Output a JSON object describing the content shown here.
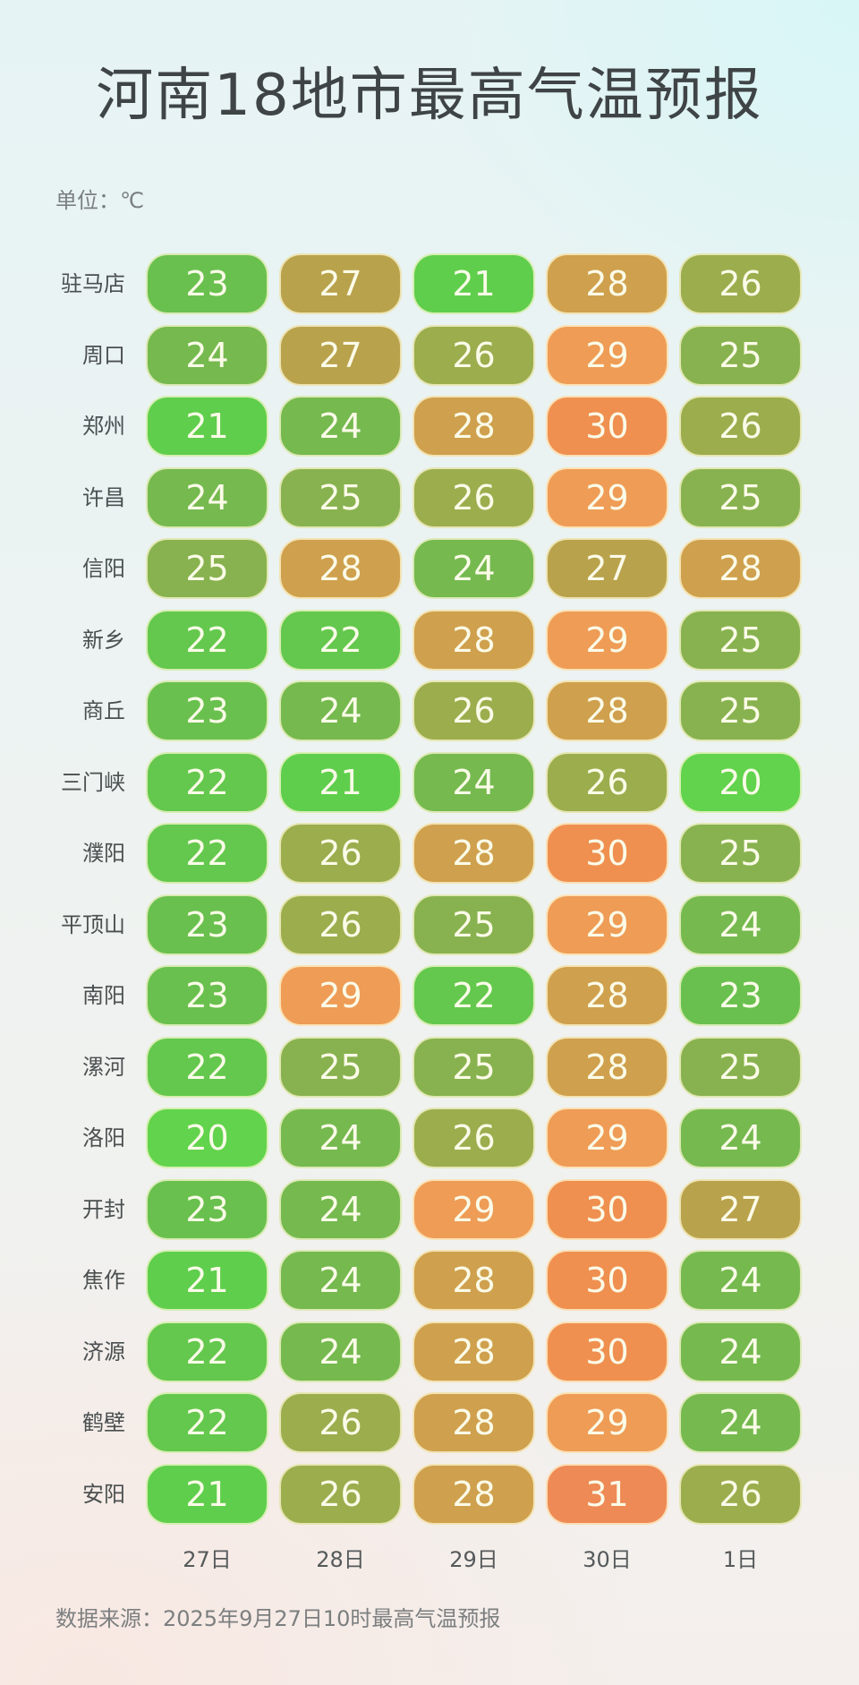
{
  "header": {
    "title": "河南18地市最高气温预报",
    "unit": "单位：℃"
  },
  "footer": {
    "source": "数据来源：2025年9月27日10时最高气温预报"
  },
  "colors": {
    "t20": "#62d34c",
    "t21": "#5fce4c",
    "t22": "#63c84d",
    "t23": "#69c04e",
    "t24": "#75b94f",
    "t25": "#88b24f",
    "t26": "#9bad4d",
    "t27": "#b9a24c",
    "t28": "#cfa04d",
    "t29": "#ee9c56",
    "t30": "#ef9050",
    "t31": "#ee8a55"
  },
  "chart_data": {
    "type": "table",
    "title": "河南18地市最高气温预报",
    "unit": "℃",
    "columns": [
      "27日",
      "28日",
      "29日",
      "30日",
      "1日"
    ],
    "rows": [
      {
        "city": "驻马店",
        "values": [
          23,
          27,
          21,
          28,
          26
        ]
      },
      {
        "city": "周口",
        "values": [
          24,
          27,
          26,
          29,
          25
        ]
      },
      {
        "city": "郑州",
        "values": [
          21,
          24,
          28,
          30,
          26
        ]
      },
      {
        "city": "许昌",
        "values": [
          24,
          25,
          26,
          29,
          25
        ]
      },
      {
        "city": "信阳",
        "values": [
          25,
          28,
          24,
          27,
          28
        ]
      },
      {
        "city": "新乡",
        "values": [
          22,
          22,
          28,
          29,
          25
        ]
      },
      {
        "city": "商丘",
        "values": [
          23,
          24,
          26,
          28,
          25
        ]
      },
      {
        "city": "三门峡",
        "values": [
          22,
          21,
          24,
          26,
          20
        ]
      },
      {
        "city": "濮阳",
        "values": [
          22,
          26,
          28,
          30,
          25
        ]
      },
      {
        "city": "平顶山",
        "values": [
          23,
          26,
          25,
          29,
          24
        ]
      },
      {
        "city": "南阳",
        "values": [
          23,
          29,
          22,
          28,
          23
        ]
      },
      {
        "city": "漯河",
        "values": [
          22,
          25,
          25,
          28,
          25
        ]
      },
      {
        "city": "洛阳",
        "values": [
          20,
          24,
          26,
          29,
          24
        ]
      },
      {
        "city": "开封",
        "values": [
          23,
          24,
          29,
          30,
          27
        ]
      },
      {
        "city": "焦作",
        "values": [
          21,
          24,
          28,
          30,
          24
        ]
      },
      {
        "city": "济源",
        "values": [
          22,
          24,
          28,
          30,
          24
        ]
      },
      {
        "city": "鹤壁",
        "values": [
          22,
          26,
          28,
          29,
          24
        ]
      },
      {
        "city": "安阳",
        "values": [
          21,
          26,
          28,
          31,
          26
        ]
      }
    ],
    "color_scale": "green (low, 20℃) → olive → orange (high, 31℃)",
    "source": "2025年9月27日10时最高气温预报"
  }
}
